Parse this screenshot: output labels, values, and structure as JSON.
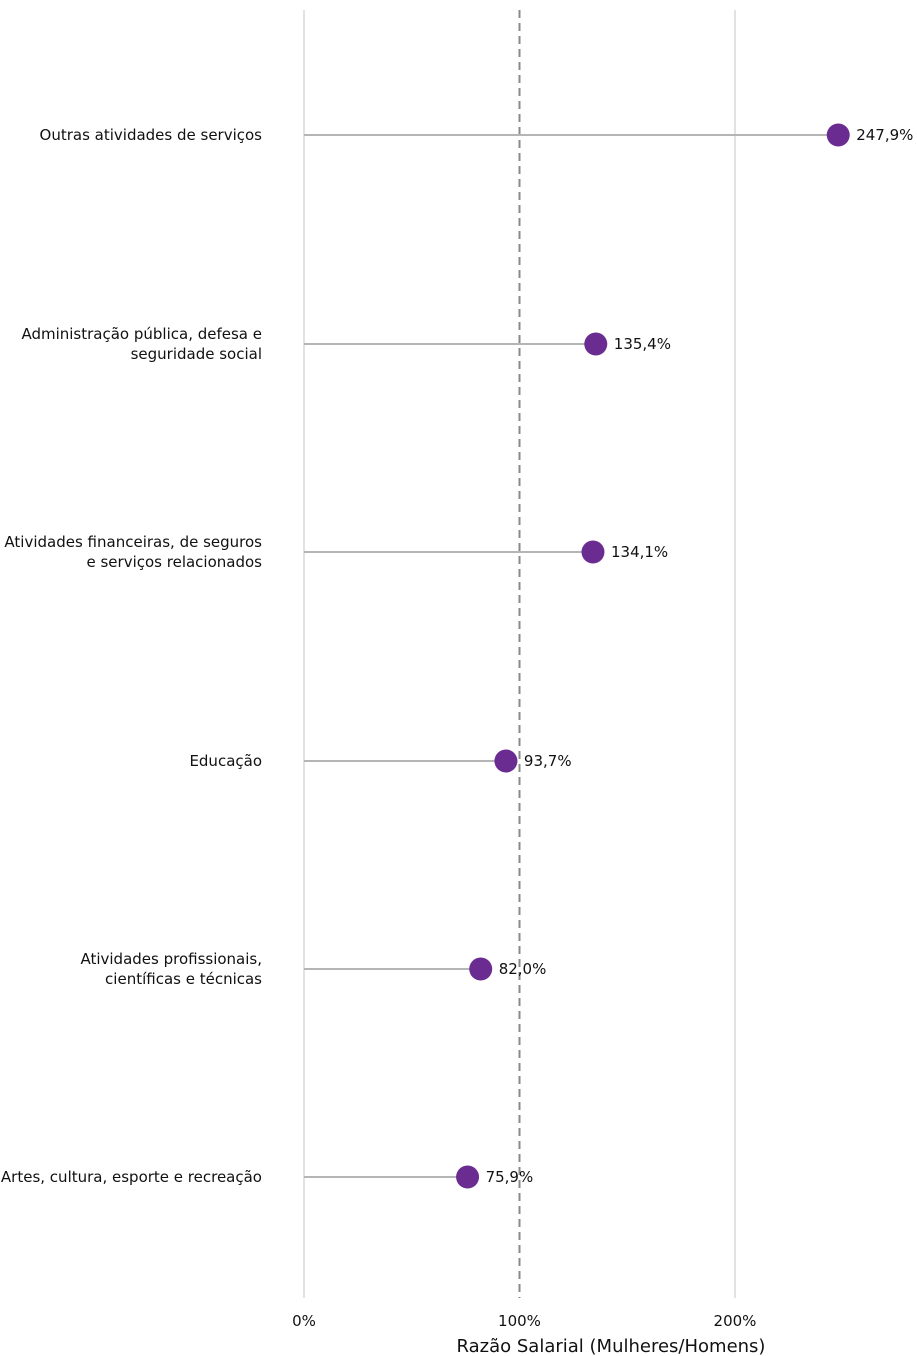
{
  "chart_data": {
    "type": "lollipop",
    "xlabel": "Razão Salarial (Mulheres/Homens)",
    "xlim": [
      0,
      250
    ],
    "xticks": [
      0,
      100,
      200
    ],
    "xtick_labels": [
      "0%",
      "100%",
      "200%"
    ],
    "reference_line": 100,
    "grid": true,
    "point_color": "#6a2c91",
    "stem_color": "#b5b5b5",
    "categories": [
      [
        "Outras atividades de serviços"
      ],
      [
        "Administração pública, defesa e",
        "seguridade social"
      ],
      [
        "Atividades financeiras, de seguros",
        "e serviços relacionados"
      ],
      [
        "Educação"
      ],
      [
        "Atividades profissionais,",
        "científicas e técnicas"
      ],
      [
        "Artes, cultura, esporte e recreação"
      ]
    ],
    "values": [
      247.9,
      135.4,
      134.1,
      93.7,
      82.0,
      75.9
    ],
    "value_labels": [
      "247,9%",
      "135,4%",
      "134,1%",
      "93,7%",
      "82,0%",
      "75,9%"
    ]
  }
}
